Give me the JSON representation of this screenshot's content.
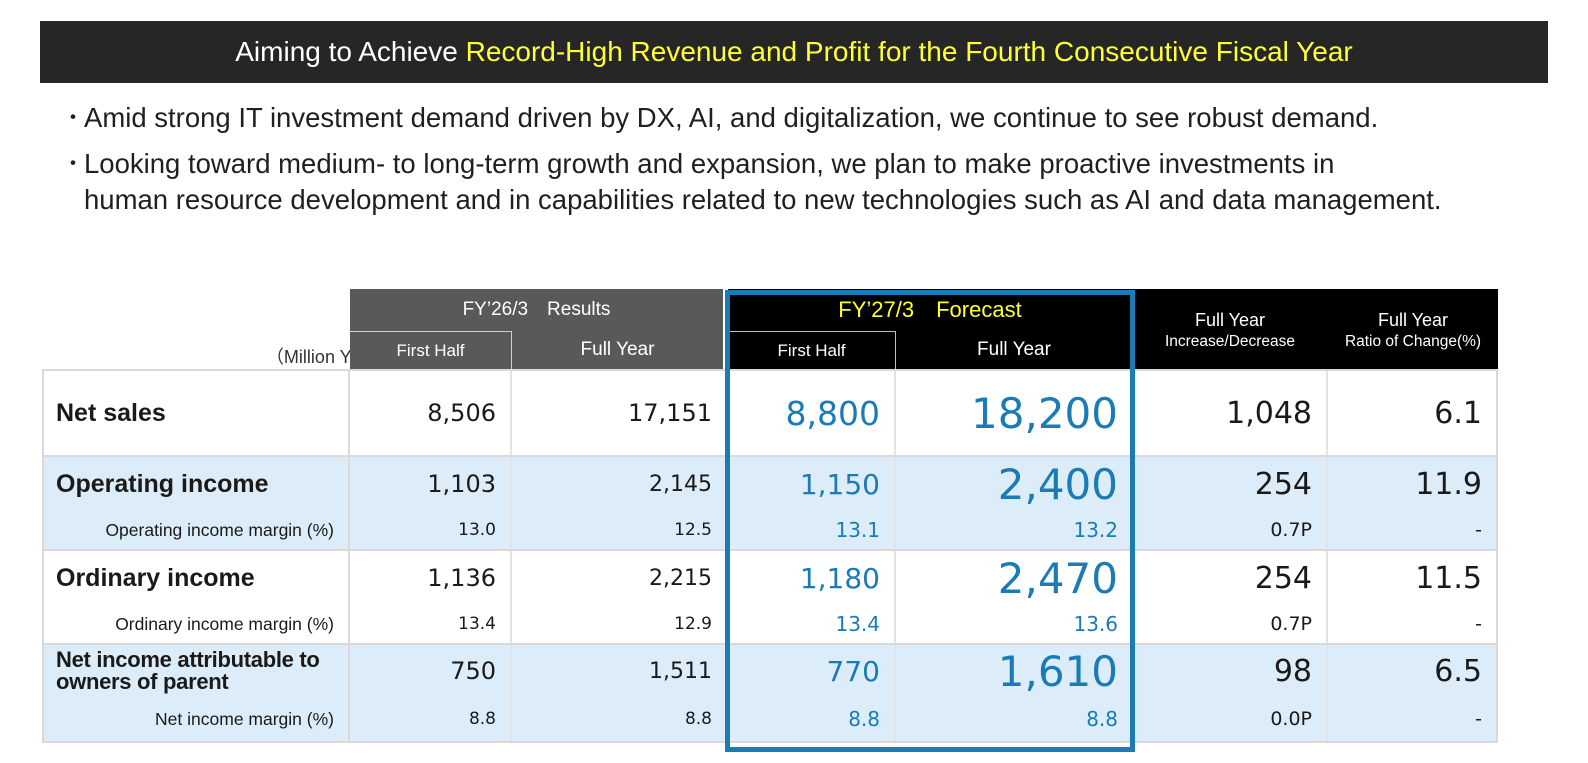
{
  "banner": {
    "prefix": "Aiming to Achieve ",
    "highlight": "Record-High Revenue and Profit for the Fourth Consecutive Fiscal Year"
  },
  "bullets": [
    {
      "dot": "・",
      "lines": [
        "Amid strong IT investment demand driven by DX, AI, and digitalization, we continue to see robust demand."
      ]
    },
    {
      "dot": "・",
      "lines": [
        "Looking toward medium- to long-term growth and expansion, we plan to make proactive investments in",
        "human resource development and in capabilities related to new technologies such as AI and data management."
      ]
    }
  ],
  "table": {
    "unit": "（Million Yen）",
    "groups": {
      "results": "FY’26/3　Results",
      "forecast": "FY’27/3　Forecast",
      "increase": [
        "Full Year",
        "Increase/Decrease"
      ],
      "ratio": [
        "Full Year",
        "Ratio of Change(%)"
      ]
    },
    "subheaders": {
      "results_h1": "First Half",
      "results_fy": "Full Year",
      "forecast_h1": "First Half",
      "forecast_fy": "Full Year"
    },
    "rows": [
      {
        "label": [
          "Net sales"
        ],
        "kind": "main",
        "band": "white",
        "values": [
          "8,506",
          "17,151",
          "8,800",
          "18,200",
          "1,048",
          "6.1"
        ]
      },
      {
        "label": [
          "Operating income"
        ],
        "kind": "main",
        "band": "blue",
        "values": [
          "1,103",
          "2,145",
          "1,150",
          "2,400",
          "254",
          "11.9"
        ]
      },
      {
        "label": [
          "Operating income margin (%)"
        ],
        "kind": "sub",
        "band": "blue",
        "values": [
          "13.0",
          "12.5",
          "13.1",
          "13.2",
          "0.7P",
          "-"
        ]
      },
      {
        "label": [
          "Ordinary income"
        ],
        "kind": "main",
        "band": "white",
        "values": [
          "1,136",
          "2,215",
          "1,180",
          "2,470",
          "254",
          "11.5"
        ]
      },
      {
        "label": [
          "Ordinary income margin (%)"
        ],
        "kind": "sub",
        "band": "white",
        "values": [
          "13.4",
          "12.9",
          "13.4",
          "13.6",
          "0.7P",
          "-"
        ]
      },
      {
        "label": [
          "Net income attributable to",
          "owners of parent"
        ],
        "kind": "main2",
        "band": "blue",
        "values": [
          "750",
          "1,511",
          "770",
          "1,610",
          "98",
          "6.5"
        ]
      },
      {
        "label": [
          "Net income margin (%)"
        ],
        "kind": "sub",
        "band": "blue",
        "values": [
          "8.8",
          "8.8",
          "8.8",
          "8.8",
          "0.0P",
          "-"
        ]
      }
    ]
  },
  "colors": {
    "banner_bg": "#262626",
    "banner_highlight": "#ffff33",
    "results_header": "#595959",
    "forecast_header": "#000000",
    "forecast_accent": "#1a7bb5",
    "band_blue": "#dcedf9"
  }
}
